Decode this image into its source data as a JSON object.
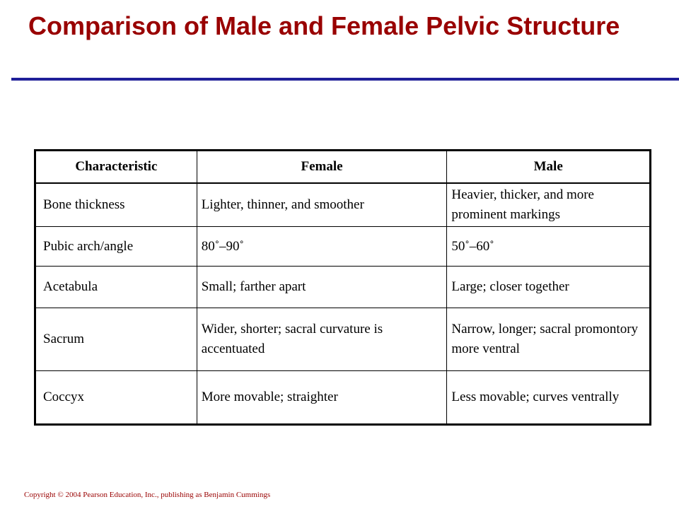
{
  "slide": {
    "title": "Comparison of Male and Female Pelvic Structure",
    "copyright": "Copyright © 2004 Pearson Education, Inc., publishing as Benjamin Cummings"
  },
  "table": {
    "headers": [
      "Characteristic",
      "Female",
      "Male"
    ],
    "rows": [
      [
        "Bone thickness",
        "Lighter, thinner, and smoother",
        "Heavier, thicker, and more prominent markings"
      ],
      [
        "Pubic arch/angle",
        "80˚–90˚",
        "50˚–60˚"
      ],
      [
        "Acetabula",
        "Small; farther apart",
        "Large; closer together"
      ],
      [
        "Sacrum",
        "Wider, shorter; sacral curvature is accentuated",
        "Narrow, longer; sacral promontory more ventral"
      ],
      [
        "Coccyx",
        "More movable; straighter",
        "Less movable; curves ventrally"
      ]
    ]
  },
  "colors": {
    "title": "#990000",
    "rule": "#1f1f99",
    "copyright": "#990000"
  }
}
